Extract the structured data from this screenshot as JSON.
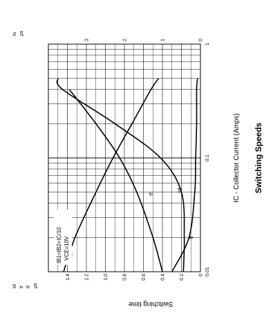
{
  "chart_data": {
    "type": "line",
    "title": "Switching Speeds",
    "xlabel": "IC - Collector Current (Amps)",
    "ylabel": "Switching time",
    "x_scale": "log",
    "xlim": [
      0.01,
      1
    ],
    "x_ticks": [
      "0.01",
      "0.1",
      "1"
    ],
    "y_left_unit": "µs",
    "y_left_series_labels": [
      "td",
      "tr",
      "tf"
    ],
    "ylim_left": [
      0,
      1.6
    ],
    "y_left_ticks": [
      "0",
      "0.2",
      "0.4",
      "0.6",
      "0.8",
      "1.0",
      "1.2",
      "1.4"
    ],
    "y_right_label": "ts",
    "y_right_unit": "µs",
    "ylim_right": [
      0,
      4
    ],
    "y_right_ticks": [
      "0",
      "1",
      "2",
      "3"
    ],
    "annotations": [
      "IB1=IB2=IC/10",
      "VCE=10V"
    ],
    "grid": true,
    "series": [
      {
        "name": "ts",
        "axis": "right",
        "x": [
          0.01,
          0.02,
          0.05,
          0.1,
          0.2,
          0.4,
          0.5
        ],
        "y": [
          3.6,
          3.3,
          2.75,
          2.3,
          1.8,
          1.3,
          1.1
        ]
      },
      {
        "name": "tf",
        "axis": "left",
        "x": [
          0.01,
          0.02,
          0.05,
          0.1,
          0.2,
          0.4
        ],
        "y": [
          0.4,
          0.5,
          0.67,
          0.85,
          1.1,
          1.38
        ]
      },
      {
        "name": "td",
        "axis": "left",
        "x": [
          0.01,
          0.02,
          0.05,
          0.1,
          0.2,
          0.4,
          0.5
        ],
        "y": [
          0.3,
          0.12,
          0.06,
          0.05,
          0.04,
          0.04,
          0.03
        ]
      },
      {
        "name": "tr",
        "axis": "left",
        "x": [
          0.01,
          0.02,
          0.05,
          0.1,
          0.2,
          0.4,
          0.5
        ],
        "y": [
          0.18,
          0.17,
          0.2,
          0.42,
          0.9,
          1.45,
          1.5
        ]
      }
    ]
  }
}
